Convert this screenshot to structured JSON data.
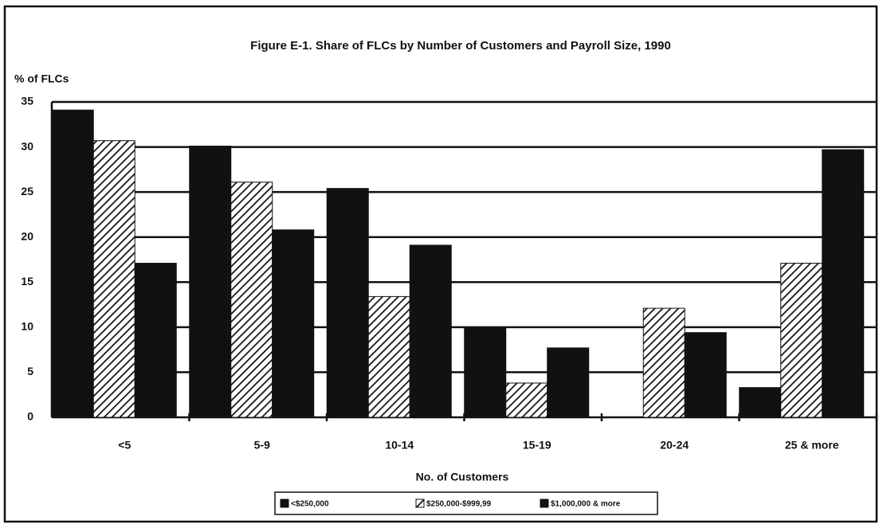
{
  "chart_data": {
    "type": "bar",
    "title": "Figure E-1.  Share of FLCs by Number of Customers and Payroll Size, 1990",
    "y_label": "% of FLCs",
    "x_label": "No. of Customers",
    "categories": [
      "<5",
      "5-9",
      "10-14",
      "15-19",
      "20-24",
      "25 & more"
    ],
    "series": [
      {
        "name": "<$250,000",
        "color": "#111111",
        "hatch": false,
        "values": [
          34.1,
          30.1,
          25.4,
          9.9,
          0,
          3.3
        ]
      },
      {
        "name": "$250,000-$999,99",
        "color": "#111111",
        "hatch": true,
        "values": [
          30.7,
          26.1,
          13.4,
          3.8,
          12.1,
          17.1
        ]
      },
      {
        "name": "$1,000,000 & more",
        "color": "#111111",
        "hatch": false,
        "values": [
          17.1,
          20.8,
          19.1,
          7.7,
          9.4,
          29.7
        ]
      }
    ],
    "ylim": [
      0,
      35
    ],
    "yticks": [
      0,
      5,
      10,
      15,
      20,
      25,
      30,
      35
    ],
    "grid": true
  }
}
